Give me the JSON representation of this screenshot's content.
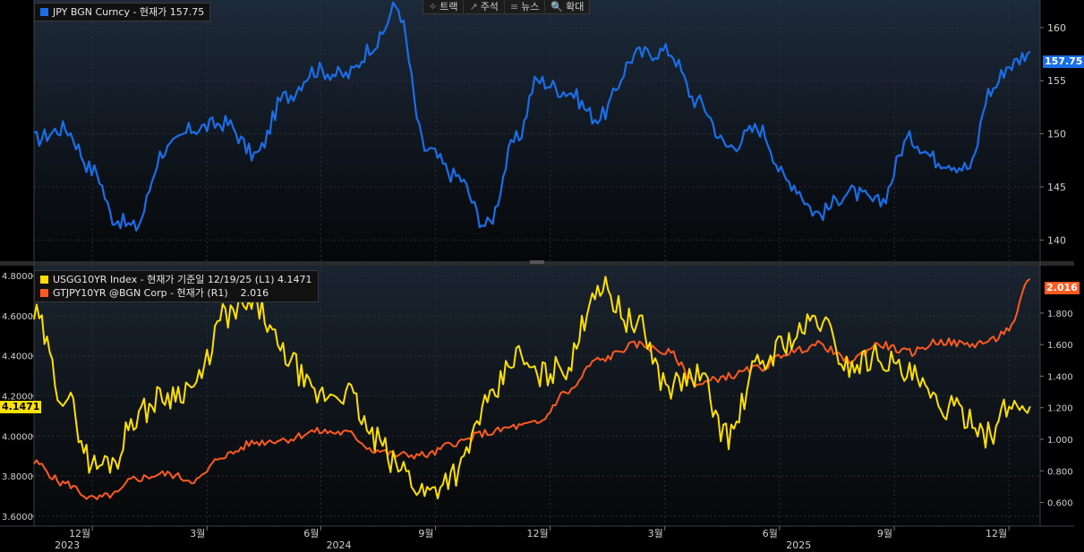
{
  "toolbar": {
    "items": [
      {
        "label": "트랙",
        "icon": "✧"
      },
      {
        "label": "주석",
        "icon": "↗"
      },
      {
        "label": "뉴스",
        "icon": "≡"
      },
      {
        "label": "확대",
        "icon": "🔍"
      }
    ]
  },
  "upper_legend": {
    "text": "JPY BGN Curncy - 현재가 157.75",
    "color": "#1a6ee8"
  },
  "upper_value_tag": "157.75",
  "lower_legend": {
    "row1": {
      "text": "USGG10YR Index - 현재가 기준일 12/19/25 (L1) 4.1471",
      "color": "#ffe000"
    },
    "row2": {
      "name": "GTJPY10YR @BGN Corp - 현재가 (R1)",
      "value": "2.016",
      "color": "#ff5a1f"
    }
  },
  "left_value_tag": "4.1471",
  "right_value_tag": "2.016",
  "colors": {
    "jpy": "#1a6ee8",
    "ust": "#ffe000",
    "jgb": "#ff5a1f",
    "grid": "#2a2f36"
  },
  "chart_data": [
    {
      "type": "line",
      "title": "JPY BGN Curncy - 현재가 157.75",
      "ylim": [
        138,
        162.6
      ],
      "yticks": [
        140,
        145,
        150,
        155,
        160
      ],
      "x": [
        0,
        0.03,
        0.06,
        0.08,
        0.1,
        0.13,
        0.16,
        0.19,
        0.22,
        0.25,
        0.28,
        0.31,
        0.34,
        0.36,
        0.39,
        0.42,
        0.45,
        0.48,
        0.5,
        0.53,
        0.56,
        0.6,
        0.63,
        0.66,
        0.69,
        0.72,
        0.75,
        0.78,
        0.81,
        0.84,
        0.87,
        0.9,
        0.93,
        0.95,
        0.97,
        0.99
      ],
      "series": [
        {
          "name": "JPY BGN Curncy",
          "values": [
            149.5,
            150.5,
            146.5,
            142,
            141.2,
            148.5,
            150.5,
            151,
            148,
            153.5,
            156,
            155.5,
            158.5,
            162,
            148.5,
            146,
            141.4,
            149.5,
            155,
            154,
            151.5,
            157.5,
            157.8,
            153,
            148.8,
            150.5,
            145.5,
            142.5,
            144.5,
            143.5,
            149.5,
            147.5,
            146.8,
            154,
            156.5,
            157.75
          ]
        }
      ]
    },
    {
      "type": "line",
      "legend": [
        "USGG10YR Index - 현재가 기준일 12/19/25 (L1) 4.1471",
        "GTJPY10YR @BGN Corp - 현재가 (R1)"
      ],
      "x": [
        0,
        0.03,
        0.06,
        0.08,
        0.1,
        0.13,
        0.16,
        0.19,
        0.22,
        0.25,
        0.28,
        0.31,
        0.34,
        0.36,
        0.39,
        0.42,
        0.45,
        0.48,
        0.5,
        0.53,
        0.56,
        0.6,
        0.63,
        0.66,
        0.69,
        0.72,
        0.75,
        0.78,
        0.81,
        0.84,
        0.87,
        0.9,
        0.93,
        0.95,
        0.97,
        0.99
      ],
      "y_left": {
        "ylim": [
          3.55,
          4.85
        ],
        "ticks": [
          3.6,
          3.8,
          4.0,
          4.2,
          4.4,
          4.6,
          4.8
        ]
      },
      "y_right": {
        "ylim": [
          0.45,
          2.1
        ],
        "ticks": [
          0.6,
          0.8,
          1.0,
          1.2,
          1.4,
          1.6,
          1.8
        ]
      },
      "series": [
        {
          "name": "USGG10YR Index",
          "axis": "left",
          "values": [
            4.6,
            4.2,
            3.85,
            3.88,
            4.1,
            4.2,
            4.25,
            4.6,
            4.65,
            4.4,
            4.2,
            4.22,
            3.98,
            3.85,
            3.72,
            3.82,
            4.15,
            4.4,
            4.3,
            4.35,
            4.75,
            4.55,
            4.25,
            4.3,
            4.0,
            4.35,
            4.48,
            4.58,
            4.35,
            4.4,
            4.3,
            4.15,
            4.1,
            4.0,
            4.15,
            4.1471
          ]
        },
        {
          "name": "GTJPY10YR @BGN Corp",
          "axis": "right",
          "values": [
            0.85,
            0.72,
            0.62,
            0.65,
            0.75,
            0.78,
            0.74,
            0.9,
            0.98,
            1.0,
            1.05,
            1.04,
            0.93,
            0.9,
            0.9,
            0.98,
            1.04,
            1.08,
            1.1,
            1.3,
            1.5,
            1.6,
            1.55,
            1.35,
            1.4,
            1.45,
            1.55,
            1.6,
            1.5,
            1.6,
            1.55,
            1.62,
            1.6,
            1.62,
            1.7,
            2.016
          ]
        }
      ]
    }
  ],
  "x_axis": {
    "months": [
      {
        "label": "12월",
        "pos": 0.058
      },
      {
        "label": "3월",
        "pos": 0.172
      },
      {
        "label": "6월",
        "pos": 0.285
      },
      {
        "label": "9월",
        "pos": 0.399
      },
      {
        "label": "12월",
        "pos": 0.513
      },
      {
        "label": "3월",
        "pos": 0.627
      },
      {
        "label": "6월",
        "pos": 0.741
      },
      {
        "label": "9월",
        "pos": 0.855
      },
      {
        "label": "12월",
        "pos": 0.969
      }
    ],
    "years": [
      {
        "label": "2023",
        "pos": 0.033
      },
      {
        "label": "2024",
        "pos": 0.303
      },
      {
        "label": "2025",
        "pos": 0.76
      }
    ]
  }
}
